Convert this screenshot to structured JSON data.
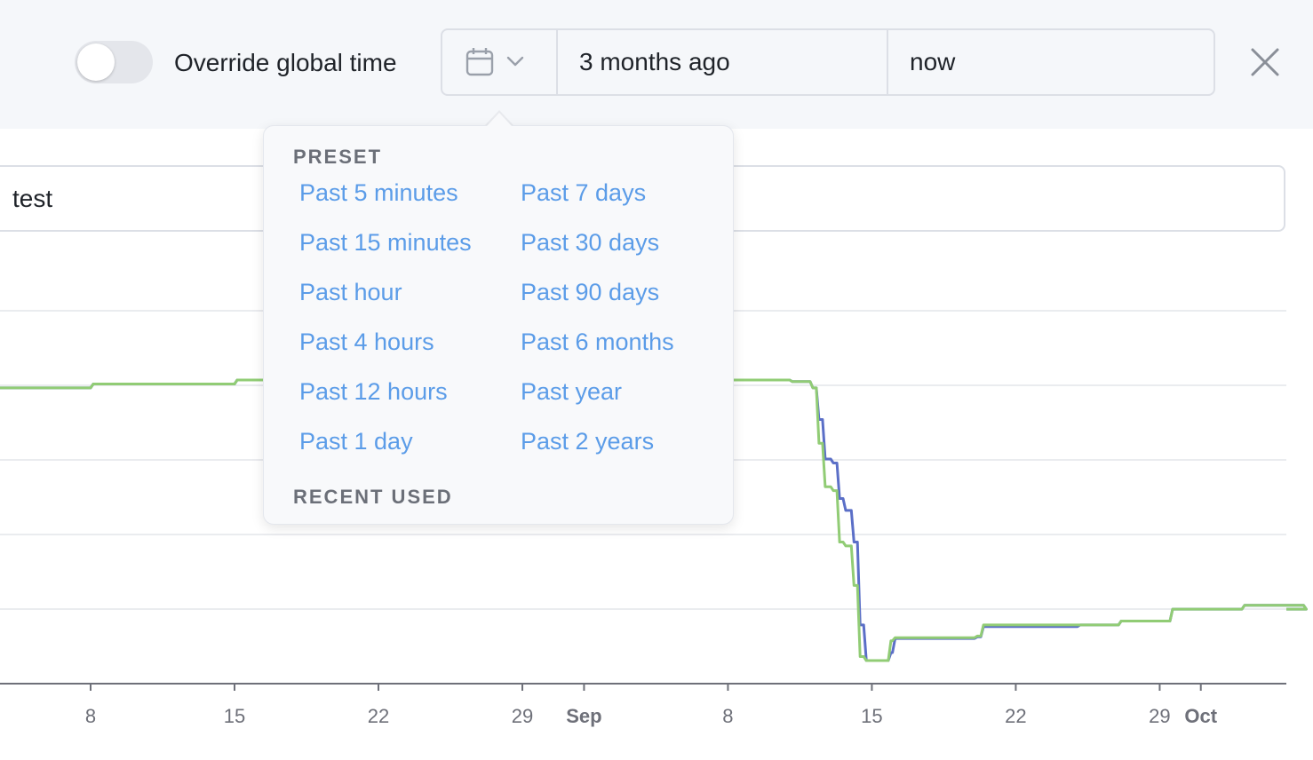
{
  "header": {
    "override_label": "Override global time",
    "override_enabled": false,
    "range_start": "3 months ago",
    "range_end": "now",
    "icons": {
      "picker": "calendar-icon",
      "dropdown": "chevron-down-icon",
      "close": "close-icon"
    }
  },
  "query": {
    "value": "test"
  },
  "popover": {
    "preset_title": "PRESET",
    "recent_title": "RECENT USED",
    "presets_left": [
      "Past 5 minutes",
      "Past 15 minutes",
      "Past hour",
      "Past 4 hours",
      "Past 12 hours",
      "Past 1 day"
    ],
    "presets_right": [
      "Past 7 days",
      "Past 30 days",
      "Past 90 days",
      "Past 6 months",
      "Past year",
      "Past 2 years"
    ]
  },
  "colors": {
    "series_blue": "#5b6fc7",
    "series_green": "#91cc75",
    "link": "#5b9ce8"
  },
  "chart_data": {
    "type": "line",
    "x_ticks": [
      {
        "label": "8",
        "bold": false
      },
      {
        "label": "15",
        "bold": false
      },
      {
        "label": "22",
        "bold": false
      },
      {
        "label": "29",
        "bold": false
      },
      {
        "label": "Sep",
        "bold": true
      },
      {
        "label": "8",
        "bold": false
      },
      {
        "label": "15",
        "bold": false
      },
      {
        "label": "22",
        "bold": false
      },
      {
        "label": "29",
        "bold": false
      },
      {
        "label": "Oct",
        "bold": true
      }
    ],
    "grid": true,
    "legend": "none",
    "series": [
      {
        "color": "#5b6fc7",
        "x": [
          "Aug 1",
          "Aug 8",
          "Aug 15",
          "Sep 1",
          "Sep 11",
          "Sep 12",
          "Sep 12.3",
          "Sep 12.6",
          "Sep 13",
          "Sep 13.3",
          "Sep 13.6",
          "Sep 14",
          "Sep 14.3",
          "Sep 14.6",
          "Sep 15",
          "Sep 15.8",
          "Sep 16",
          "Sep 20",
          "Sep 20.3",
          "Sep 25",
          "Sep 27",
          "Sep 29",
          "Sep 29.5",
          "Oct 3",
          "Oct 6"
        ],
        "y": [
          4.0,
          4.05,
          4.1,
          4.1,
          4.08,
          4.0,
          3.6,
          3.1,
          3.05,
          2.6,
          2.45,
          2.05,
          1.0,
          0.55,
          0.55,
          0.65,
          0.83,
          0.85,
          0.98,
          1.0,
          1.05,
          1.05,
          1.2,
          1.25,
          1.2
        ]
      },
      {
        "color": "#91cc75",
        "x": [
          "Aug 1",
          "Aug 8",
          "Aug 15",
          "Sep 1",
          "Sep 11",
          "Sep 12",
          "Sep 12.3",
          "Sep 12.6",
          "Sep 13",
          "Sep 13.3",
          "Sep 13.6",
          "Sep 14",
          "Sep 14.3",
          "Sep 14.6",
          "Sep 15",
          "Sep 15.8",
          "Sep 16",
          "Sep 20",
          "Sep 20.3",
          "Sep 25",
          "Sep 27",
          "Sep 29",
          "Sep 29.5",
          "Oct 3",
          "Oct 6"
        ],
        "y": [
          4.0,
          4.05,
          4.1,
          4.1,
          4.08,
          4.0,
          3.3,
          2.75,
          2.7,
          2.05,
          2.0,
          1.5,
          0.6,
          0.55,
          0.55,
          0.8,
          0.84,
          0.86,
          1.0,
          1.0,
          1.05,
          1.05,
          1.2,
          1.25,
          1.2
        ]
      }
    ]
  }
}
